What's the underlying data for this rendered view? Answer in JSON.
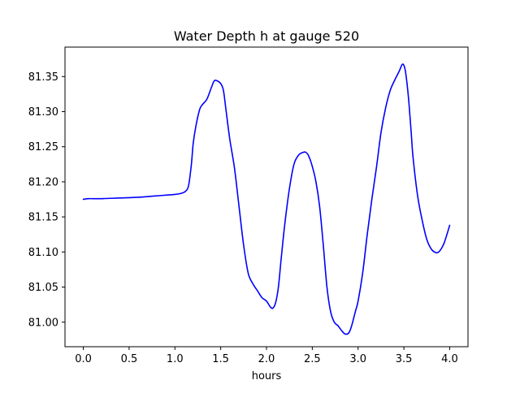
{
  "chart_data": {
    "type": "line",
    "title": "Water Depth h at gauge 520",
    "xlabel": "hours",
    "ylabel": "",
    "xlim": [
      -0.2,
      4.2
    ],
    "ylim": [
      80.965,
      81.392
    ],
    "xticks": [
      0.0,
      0.5,
      1.0,
      1.5,
      2.0,
      2.5,
      3.0,
      3.5,
      4.0
    ],
    "xtick_labels": [
      "0.0",
      "0.5",
      "1.0",
      "1.5",
      "2.0",
      "2.5",
      "3.0",
      "3.5",
      "4.0"
    ],
    "yticks": [
      81.0,
      81.05,
      81.1,
      81.15,
      81.2,
      81.25,
      81.3,
      81.35
    ],
    "ytick_labels": [
      "81.00",
      "81.05",
      "81.10",
      "81.15",
      "81.20",
      "81.25",
      "81.30",
      "81.35"
    ],
    "grid": false,
    "legend": "none",
    "series": [
      {
        "color": "#0000ff",
        "x": [
          0.0,
          0.05,
          0.2,
          0.4,
          0.6,
          0.8,
          1.0,
          1.08,
          1.12,
          1.15,
          1.18,
          1.2,
          1.23,
          1.27,
          1.3,
          1.35,
          1.4,
          1.43,
          1.46,
          1.5,
          1.53,
          1.56,
          1.6,
          1.65,
          1.7,
          1.75,
          1.8,
          1.85,
          1.9,
          1.95,
          2.0,
          2.04,
          2.07,
          2.1,
          2.13,
          2.16,
          2.2,
          2.25,
          2.3,
          2.35,
          2.4,
          2.43,
          2.46,
          2.5,
          2.54,
          2.58,
          2.62,
          2.66,
          2.7,
          2.74,
          2.78,
          2.82,
          2.86,
          2.9,
          2.93,
          2.97,
          3.0,
          3.05,
          3.1,
          3.15,
          3.2,
          3.25,
          3.3,
          3.35,
          3.4,
          3.45,
          3.48,
          3.5,
          3.52,
          3.55,
          3.58,
          3.6,
          3.65,
          3.7,
          3.75,
          3.8,
          3.85,
          3.88,
          3.91,
          3.94,
          3.97,
          4.0
        ],
        "y": [
          81.175,
          81.176,
          81.176,
          81.177,
          81.178,
          81.18,
          81.182,
          81.184,
          81.187,
          81.195,
          81.225,
          81.255,
          81.28,
          81.303,
          81.31,
          81.318,
          81.335,
          81.344,
          81.344,
          81.34,
          81.33,
          81.3,
          81.26,
          81.22,
          81.165,
          81.11,
          81.07,
          81.055,
          81.045,
          81.035,
          81.03,
          81.022,
          81.02,
          81.028,
          81.05,
          81.09,
          81.14,
          81.19,
          81.225,
          81.238,
          81.242,
          81.242,
          81.237,
          81.222,
          81.2,
          81.165,
          81.11,
          81.05,
          81.015,
          81.0,
          80.995,
          80.988,
          80.983,
          80.985,
          80.995,
          81.015,
          81.03,
          81.07,
          81.125,
          81.175,
          81.22,
          81.27,
          81.305,
          81.33,
          81.345,
          81.358,
          81.367,
          81.366,
          81.355,
          81.32,
          81.27,
          81.235,
          81.18,
          81.145,
          81.118,
          81.104,
          81.099,
          81.1,
          81.105,
          81.113,
          81.125,
          81.138
        ]
      }
    ]
  }
}
